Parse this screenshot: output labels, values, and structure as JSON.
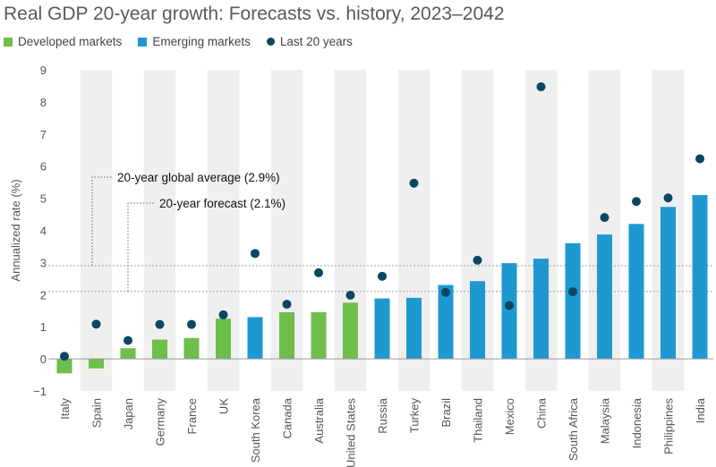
{
  "chart_data": {
    "type": "bar",
    "title": "Real GDP 20-year growth: Forecasts vs. history, 2023–2042",
    "ylabel": "Annualized rate (%)",
    "xlabel": "",
    "ylim": [
      -1,
      9
    ],
    "yticks": [
      "−1",
      "0",
      "1",
      "2",
      "3",
      "4",
      "5",
      "6",
      "7",
      "8",
      "9"
    ],
    "categories": [
      "Italy",
      "Spain",
      "Japan",
      "Germany",
      "France",
      "UK",
      "South Korea",
      "Canada",
      "Australia",
      "United States",
      "Russia",
      "Turkey",
      "Brazil",
      "Thailand",
      "Mexico",
      "China",
      "South Africa",
      "Malaysia",
      "Indonesia",
      "Philippines",
      "India"
    ],
    "groups": [
      "developed",
      "developed",
      "developed",
      "developed",
      "developed",
      "developed",
      "emerging",
      "developed",
      "developed",
      "developed",
      "emerging",
      "emerging",
      "emerging",
      "emerging",
      "emerging",
      "emerging",
      "emerging",
      "emerging",
      "emerging",
      "emerging",
      "emerging"
    ],
    "series": [
      {
        "name": "Forecast",
        "type": "bar",
        "values": [
          -0.45,
          -0.3,
          0.33,
          0.6,
          0.65,
          1.25,
          1.3,
          1.45,
          1.45,
          1.75,
          1.88,
          1.9,
          2.3,
          2.42,
          2.98,
          3.12,
          3.6,
          3.87,
          4.2,
          4.73,
          5.1
        ]
      },
      {
        "name": "Last 20 years",
        "type": "scatter",
        "values": [
          0.08,
          1.08,
          0.57,
          1.07,
          1.07,
          1.37,
          3.28,
          1.7,
          2.68,
          1.98,
          2.57,
          5.47,
          2.07,
          3.07,
          1.66,
          8.47,
          2.09,
          4.4,
          4.9,
          5.01,
          6.23
        ]
      }
    ],
    "legend": [
      "Developed markets",
      "Emerging markets",
      "Last 20 years"
    ],
    "legend_position": "top-left",
    "reference_lines": [
      {
        "label": "20-year global average (2.9%)",
        "value": 2.9
      },
      {
        "label": "20-year forecast (2.1%)",
        "value": 2.1
      }
    ],
    "colors": {
      "developed": "#6dbe4b",
      "emerging": "#1e98d1",
      "history": "#0b4662",
      "band": "#efefef",
      "reference": "#777777",
      "text": "#555555"
    }
  }
}
